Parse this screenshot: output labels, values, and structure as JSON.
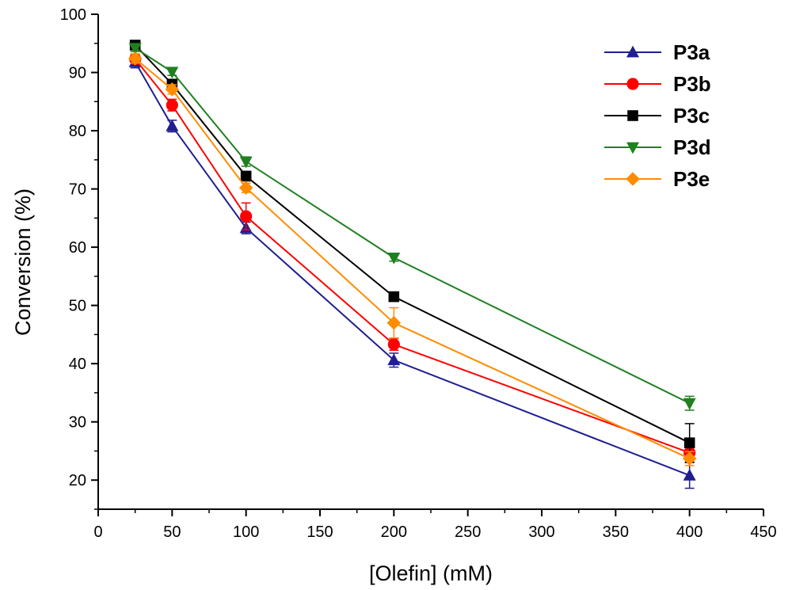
{
  "chart_data": {
    "type": "line",
    "title": "",
    "xlabel": "[Olefin] (mM)",
    "ylabel": "Conversion (%)",
    "xlim": [
      0,
      450
    ],
    "ylim": [
      15,
      100
    ],
    "x_ticks": [
      0,
      50,
      100,
      150,
      200,
      250,
      300,
      350,
      400,
      450
    ],
    "y_ticks": [
      20,
      30,
      40,
      50,
      60,
      70,
      80,
      90,
      100
    ],
    "x_tick_labels": [
      "0",
      "50",
      "100",
      "150",
      "200",
      "250",
      "300",
      "350",
      "400",
      "450"
    ],
    "y_tick_labels": [
      "20",
      "30",
      "40",
      "50",
      "60",
      "70",
      "80",
      "90",
      "100"
    ],
    "grid": false,
    "legend_position": "top-right",
    "x": [
      25,
      50,
      100,
      200,
      400
    ],
    "series": [
      {
        "name": "P3a",
        "marker": "triangle-up",
        "color": "#1f1f8f",
        "values": [
          91.8,
          80.8,
          63.3,
          40.6,
          20.8
        ],
        "errors": [
          1.0,
          1.0,
          1.0,
          1.2,
          2.2
        ]
      },
      {
        "name": "P3b",
        "marker": "circle",
        "color": "#ff0000",
        "values": [
          92.3,
          84.4,
          65.3,
          43.3,
          24.7
        ],
        "errors": [
          0.8,
          1.0,
          2.3,
          1.0,
          1.0
        ]
      },
      {
        "name": "P3c",
        "marker": "square",
        "color": "#000000",
        "values": [
          94.7,
          88.0,
          72.2,
          51.5,
          26.4
        ],
        "errors": [
          0.6,
          0.8,
          0.8,
          0.6,
          3.3
        ]
      },
      {
        "name": "P3d",
        "marker": "triangle-down",
        "color": "#208020",
        "values": [
          94.2,
          90.1,
          74.7,
          58.2,
          33.2
        ],
        "errors": [
          0.6,
          0.6,
          0.8,
          0.6,
          1.2
        ]
      },
      {
        "name": "P3e",
        "marker": "diamond",
        "color": "#ff8c00",
        "values": [
          92.4,
          87.1,
          70.2,
          47.0,
          23.7
        ],
        "errors": [
          0.8,
          0.8,
          0.8,
          2.6,
          1.2
        ]
      }
    ]
  }
}
